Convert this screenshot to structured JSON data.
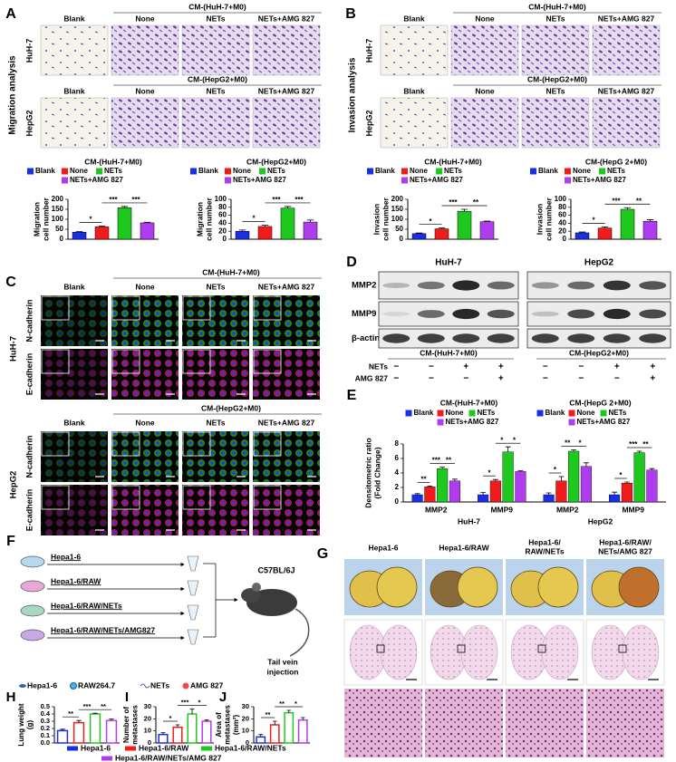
{
  "A": {
    "label": "A",
    "axis_title": "Migration analysis",
    "rows": [
      {
        "cell_line": "HuH-7",
        "header": "CM-(HuH-7+M0)",
        "columns": [
          "Blank",
          "None",
          "NETs",
          "NETs+AMG 827"
        ]
      },
      {
        "cell_line": "HepG2",
        "header": "CM-(HepG2+M0)",
        "columns": [
          "Blank",
          "None",
          "NETs",
          "NETs+AMG 827"
        ]
      }
    ],
    "charts": [
      {
        "type": "bar",
        "title": "CM-(HuH-7+M0)",
        "ylabel": [
          "Migration",
          "cell number"
        ],
        "categories": [
          "Blank",
          "None",
          "NETs",
          "NETs+AMG 827"
        ],
        "colors": [
          "#1a2ee6",
          "#f01c1c",
          "#1fc81f",
          "#b03cf0"
        ],
        "values": [
          35,
          62,
          158,
          82
        ],
        "errors": [
          3,
          4,
          6,
          3
        ],
        "ylim": [
          0,
          200
        ],
        "yticks": [
          0,
          50,
          100,
          150,
          200
        ],
        "significance": [
          {
            "label": "*",
            "bars": [
              0,
              1
            ]
          },
          {
            "label": "***",
            "bars": [
              1,
              2
            ]
          },
          {
            "label": "***",
            "bars": [
              2,
              3
            ]
          }
        ]
      },
      {
        "type": "bar",
        "title": "CM-(HepG2+M0)",
        "ylabel": [
          "Migration",
          "cell number"
        ],
        "categories": [
          "Blank",
          "None",
          "NETs",
          "NETs+AMG 827"
        ],
        "colors": [
          "#1a2ee6",
          "#f01c1c",
          "#1fc81f",
          "#b03cf0"
        ],
        "values": [
          20,
          32,
          78,
          43
        ],
        "errors": [
          3,
          3,
          4,
          5
        ],
        "ylim": [
          0,
          100
        ],
        "yticks": [
          0,
          20,
          40,
          60,
          80,
          100
        ],
        "significance": [
          {
            "label": "*",
            "bars": [
              0,
              1
            ]
          },
          {
            "label": "***",
            "bars": [
              1,
              2
            ]
          },
          {
            "label": "***",
            "bars": [
              2,
              3
            ]
          }
        ]
      }
    ]
  },
  "B": {
    "label": "B",
    "axis_title": "Invasion analysis",
    "rows": [
      {
        "cell_line": "HuH-7",
        "header": "CM-(HuH-7+M0)",
        "columns": [
          "Blank",
          "None",
          "NETs",
          "NETs+AMG 827"
        ]
      },
      {
        "cell_line": "HepG2",
        "header": "CM-(HepG2+M0)",
        "columns": [
          "Blank",
          "None",
          "NETs",
          "NETs+AMG 827"
        ]
      }
    ],
    "charts": [
      {
        "type": "bar",
        "title": "CM-(HuH-7+M0)",
        "ylabel": [
          "Invasion",
          "cell number"
        ],
        "categories": [
          "Blank",
          "None",
          "NETs",
          "NETs+AMG 827"
        ],
        "colors": [
          "#1a2ee6",
          "#f01c1c",
          "#1fc81f",
          "#b03cf0"
        ],
        "values": [
          28,
          52,
          140,
          88
        ],
        "errors": [
          3,
          4,
          10,
          3
        ],
        "ylim": [
          0,
          200
        ],
        "yticks": [
          0,
          50,
          100,
          150,
          200
        ],
        "significance": [
          {
            "label": "*",
            "bars": [
              0,
              1
            ]
          },
          {
            "label": "***",
            "bars": [
              1,
              2
            ]
          },
          {
            "label": "**",
            "bars": [
              2,
              3
            ]
          }
        ]
      },
      {
        "type": "bar",
        "title": "CM-(HepG 2+M0)",
        "ylabel": [
          "Invasion",
          "cell number"
        ],
        "categories": [
          "Blank",
          "None",
          "NETs",
          "NETs+AMG 827"
        ],
        "colors": [
          "#1a2ee6",
          "#f01c1c",
          "#1fc81f",
          "#b03cf0"
        ],
        "values": [
          16,
          28,
          75,
          45
        ],
        "errors": [
          2,
          3,
          4,
          4
        ],
        "ylim": [
          0,
          100
        ],
        "yticks": [
          0,
          20,
          40,
          60,
          80,
          100
        ],
        "significance": [
          {
            "label": "*",
            "bars": [
              0,
              1
            ]
          },
          {
            "label": "***",
            "bars": [
              1,
              2
            ]
          },
          {
            "label": "**",
            "bars": [
              2,
              3
            ]
          }
        ]
      }
    ]
  },
  "C": {
    "label": "C",
    "blocks": [
      {
        "cell_line": "HuH-7",
        "header": "CM-(HuH-7+M0)",
        "columns": [
          "Blank",
          "None",
          "NETs",
          "NETs+AMG 827"
        ],
        "stains": [
          "N-cadherin",
          "E-cadherin"
        ]
      },
      {
        "cell_line": "HepG2",
        "header": "CM-(HepG2+M0)",
        "columns": [
          "Blank",
          "None",
          "NETs",
          "NETs+AMG 827"
        ],
        "stains": [
          "N-cadherin",
          "E-cadherin"
        ]
      }
    ]
  },
  "D": {
    "label": "D",
    "cell_lines": [
      "HuH-7",
      "HepG2"
    ],
    "proteins": [
      "MMP2",
      "MMP9",
      "β-actin"
    ],
    "headers": [
      "CM-(HuH-7+M0)",
      "CM-(HepG2+M0)"
    ],
    "treatments": [
      {
        "name": "NETs",
        "signs": [
          "−",
          "−",
          "+",
          "+",
          "−",
          "−",
          "+",
          "+"
        ]
      },
      {
        "name": "AMG 827",
        "signs": [
          "−",
          "−",
          "−",
          "+",
          "−",
          "−",
          "−",
          "+"
        ]
      }
    ]
  },
  "E": {
    "label": "E",
    "chart": {
      "type": "grouped_bar",
      "titles": [
        "CM-(HuH-7+M0)",
        "CM-(HepG 2+M0)"
      ],
      "ylabel": [
        "Densitometric ratio",
        "(Fold Change)"
      ],
      "categories": [
        "MMP2",
        "MMP9",
        "MMP2",
        "MMP9"
      ],
      "group_labels": [
        "HuH-7",
        "HepG2"
      ],
      "series": [
        {
          "name": "Blank",
          "color": "#1a2ee6",
          "values": [
            1,
            1,
            1,
            1
          ],
          "errors": [
            0.15,
            0.3,
            0.25,
            0.35
          ]
        },
        {
          "name": "None",
          "color": "#f01c1c",
          "values": [
            2.1,
            2.9,
            2.9,
            2.6
          ],
          "errors": [
            0.1,
            0.2,
            0.6,
            0.15
          ]
        },
        {
          "name": "NETs",
          "color": "#1fc81f",
          "values": [
            4.6,
            6.9,
            7.0,
            6.8
          ],
          "errors": [
            0.2,
            0.7,
            0.2,
            0.2
          ]
        },
        {
          "name": "NETs+AMG 827",
          "color": "#b03cf0",
          "values": [
            2.9,
            4.2,
            4.9,
            4.4
          ],
          "errors": [
            0.25,
            0.1,
            0.5,
            0.2
          ]
        }
      ],
      "ylim": [
        0,
        8
      ],
      "yticks": [
        0,
        2,
        4,
        6,
        8
      ],
      "significance": [
        {
          "label": "**",
          "category": 0,
          "bars": [
            0,
            1
          ]
        },
        {
          "label": "***",
          "category": 0,
          "bars": [
            1,
            2
          ]
        },
        {
          "label": "**",
          "category": 0,
          "bars": [
            2,
            3
          ]
        },
        {
          "label": "*",
          "category": 1,
          "bars": [
            0,
            1
          ]
        },
        {
          "label": "*",
          "category": 1,
          "bars": [
            1,
            2
          ]
        },
        {
          "label": "*",
          "category": 1,
          "bars": [
            2,
            3
          ]
        },
        {
          "label": "*",
          "category": 2,
          "bars": [
            0,
            1
          ]
        },
        {
          "label": "**",
          "category": 2,
          "bars": [
            1,
            2
          ]
        },
        {
          "label": "*",
          "category": 2,
          "bars": [
            2,
            3
          ]
        },
        {
          "label": "*",
          "category": 3,
          "bars": [
            0,
            1
          ]
        },
        {
          "label": "***",
          "category": 3,
          "bars": [
            1,
            2
          ]
        },
        {
          "label": "**",
          "category": 3,
          "bars": [
            2,
            3
          ]
        }
      ]
    }
  },
  "F": {
    "label": "F",
    "groups": [
      "Hepa1-6",
      "Hepa1-6/RAW",
      "Hepa1-6/RAW/NETs",
      "Hepa1-6/RAW/NETs/AMG827"
    ],
    "host": "C57BL/6J",
    "route": [
      "Tail vein",
      "injection"
    ],
    "legend": [
      "Hepa1-6",
      "RAW264.7",
      "NETs",
      "AMG 827"
    ]
  },
  "G": {
    "label": "G",
    "columns": [
      [
        "Hepa1-6"
      ],
      [
        "Hepa1-6/RAW"
      ],
      [
        "Hepa1-6/",
        "RAW/NETs"
      ],
      [
        "Hepa1-6/RAW/",
        "NETs/AMG 827"
      ]
    ]
  },
  "H": {
    "label": "H",
    "chart": {
      "type": "bar",
      "style": "outline",
      "ylabel": [
        "Lung weight",
        "(g)"
      ],
      "colors": [
        "#1a2ee6",
        "#f01c1c",
        "#1fc81f",
        "#b03cf0"
      ],
      "values": [
        0.17,
        0.28,
        0.4,
        0.31
      ],
      "errors": [
        0.02,
        0.03,
        0.01,
        0.02
      ],
      "ylim": [
        0,
        0.5
      ],
      "yticks": [
        {
          "value": 0,
          "label": "0.0"
        },
        0.1,
        0.2,
        0.3,
        0.4,
        0.5
      ],
      "significance": [
        {
          "label": "**",
          "bars": [
            0,
            1
          ]
        },
        {
          "label": "***",
          "bars": [
            1,
            2
          ]
        },
        {
          "label": "**",
          "bars": [
            2,
            3
          ]
        }
      ]
    }
  },
  "I": {
    "label": "I",
    "chart": {
      "type": "bar",
      "style": "outline",
      "ylabel": [
        "Number of",
        "metastases"
      ],
      "colors": [
        "#1a2ee6",
        "#f01c1c",
        "#1fc81f",
        "#b03cf0"
      ],
      "values": [
        7,
        13,
        24,
        18
      ],
      "errors": [
        1.5,
        2,
        4,
        1
      ],
      "ylim": [
        0,
        30
      ],
      "yticks": [
        0,
        10,
        20,
        30
      ],
      "significance": [
        {
          "label": "*",
          "bars": [
            0,
            1
          ]
        },
        {
          "label": "***",
          "bars": [
            1,
            2
          ]
        },
        {
          "label": "*",
          "bars": [
            2,
            3
          ]
        }
      ]
    }
  },
  "J": {
    "label": "J",
    "chart": {
      "type": "bar",
      "style": "outline",
      "ylabel": [
        "Area of",
        "metastases",
        "(mm²)"
      ],
      "colors": [
        "#1a2ee6",
        "#f01c1c",
        "#1fc81f",
        "#b03cf0"
      ],
      "values": [
        5,
        15,
        25,
        19
      ],
      "errors": [
        2,
        3,
        2,
        2
      ],
      "ylim": [
        0,
        30
      ],
      "yticks": [
        0,
        10,
        20,
        30
      ],
      "significance": [
        {
          "label": "**",
          "bars": [
            0,
            1
          ]
        },
        {
          "label": "**",
          "bars": [
            1,
            2
          ]
        },
        {
          "label": "*",
          "bars": [
            2,
            3
          ]
        }
      ]
    }
  },
  "mouse_legend": {
    "names": [
      "Hepa1-6",
      "Hepa1-6/RAW",
      "Hepa1-6/RAW/NETs",
      "Hepa1-6/RAW/NETs/AMG 827"
    ],
    "colors": [
      "#1a2ee6",
      "#f01c1c",
      "#1fc81f",
      "#b03cf0"
    ]
  }
}
